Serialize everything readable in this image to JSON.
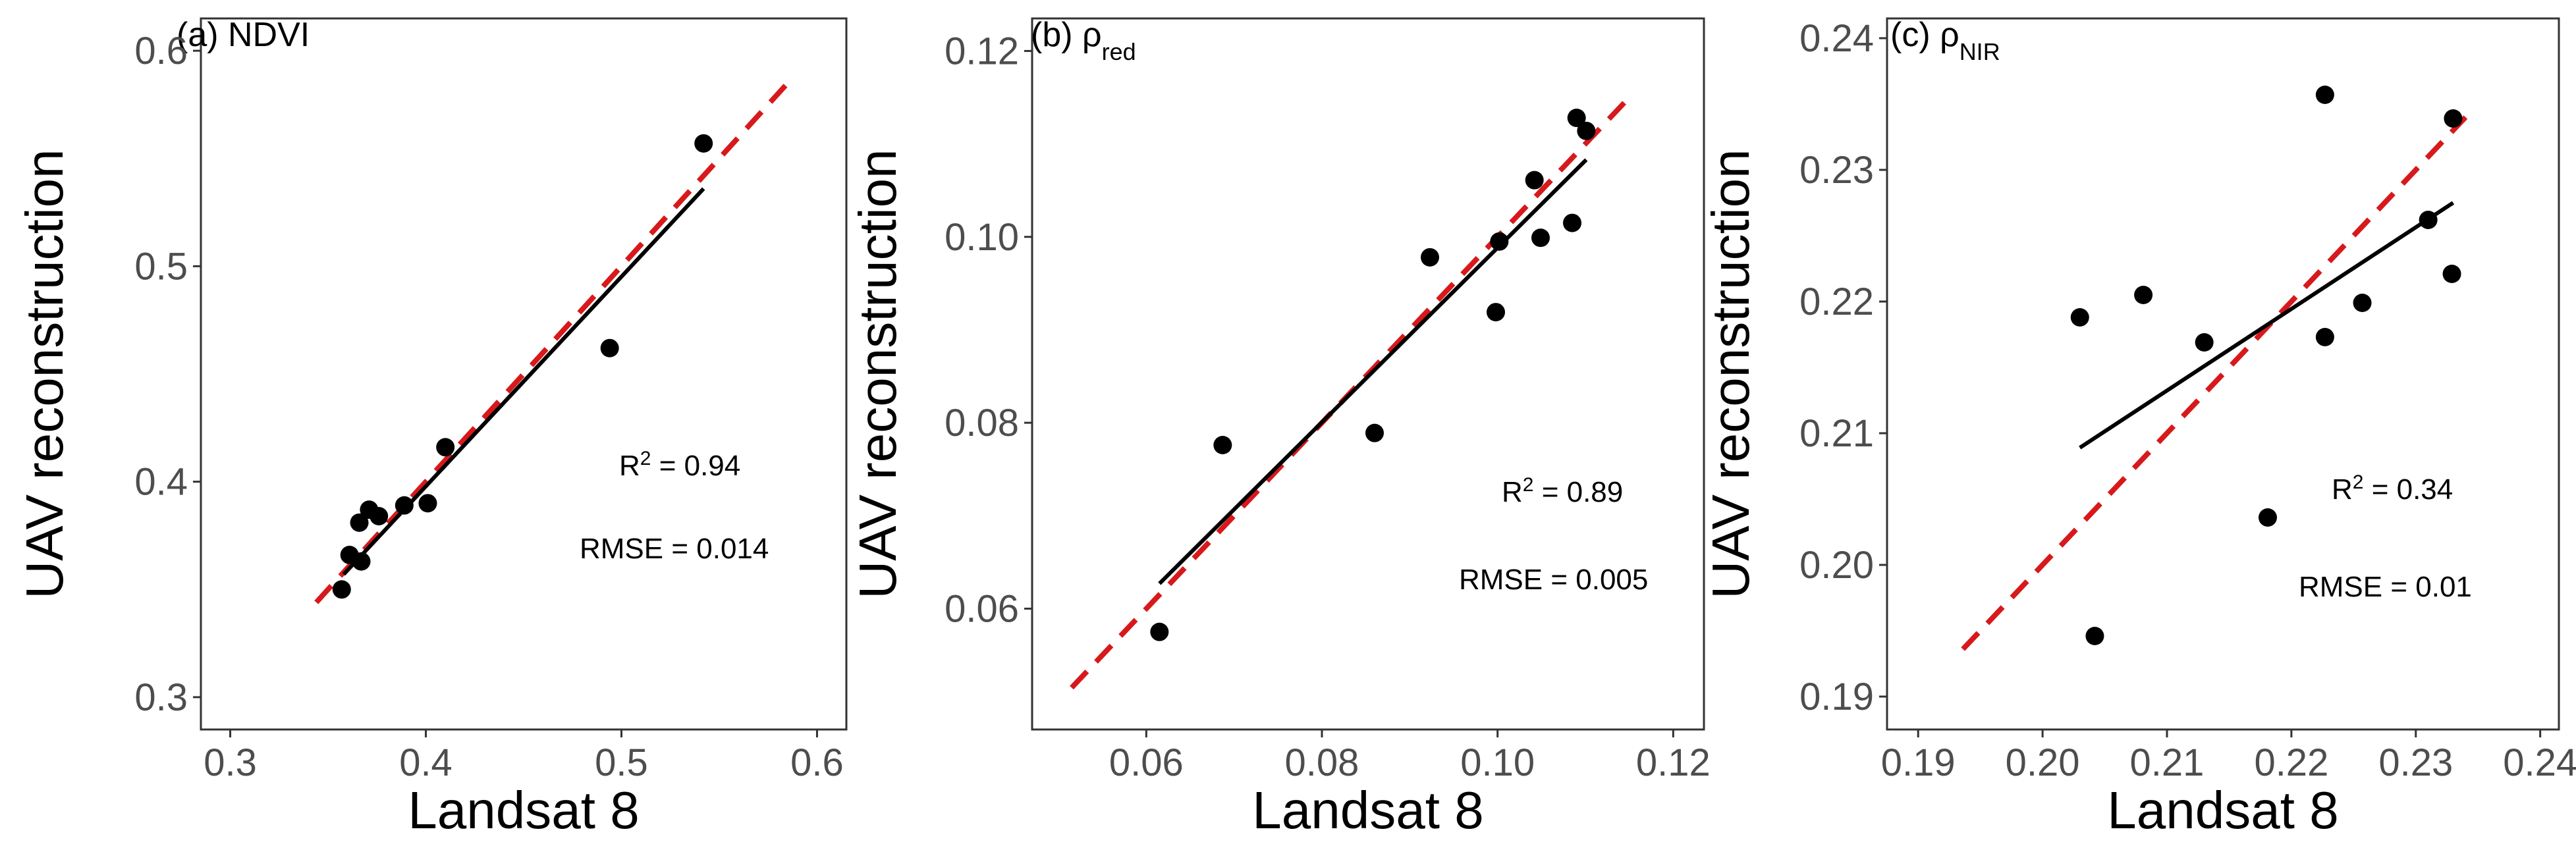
{
  "chart_data": [
    {
      "type": "scatter",
      "title": "(a) NDVI",
      "title_prefix": "(a) ",
      "title_main": "NDVI",
      "title_sub": "",
      "xlabel": "Landsat 8",
      "ylabel": "UAV reconstruction",
      "xlim": [
        0.285,
        0.615
      ],
      "ylim": [
        0.285,
        0.615
      ],
      "xticks": [
        0.3,
        0.4,
        0.5,
        0.6
      ],
      "xtick_labels": [
        "0.3",
        "0.4",
        "0.5",
        "0.6"
      ],
      "yticks": [
        0.3,
        0.4,
        0.5,
        0.6
      ],
      "ytick_labels": [
        "0.3",
        "0.4",
        "0.5",
        "0.6"
      ],
      "points": [
        {
          "x": 0.357,
          "y": 0.35
        },
        {
          "x": 0.361,
          "y": 0.366
        },
        {
          "x": 0.366,
          "y": 0.381
        },
        {
          "x": 0.367,
          "y": 0.363
        },
        {
          "x": 0.371,
          "y": 0.387
        },
        {
          "x": 0.376,
          "y": 0.384
        },
        {
          "x": 0.389,
          "y": 0.389
        },
        {
          "x": 0.401,
          "y": 0.39
        },
        {
          "x": 0.41,
          "y": 0.416
        },
        {
          "x": 0.494,
          "y": 0.462
        },
        {
          "x": 0.542,
          "y": 0.557
        }
      ],
      "identity_line": {
        "x": [
          0.344,
          0.588
        ],
        "y": [
          0.344,
          0.588
        ],
        "color": "#d7191c"
      },
      "fit_line": {
        "x": [
          0.358,
          0.542
        ],
        "y": [
          0.357,
          0.536
        ],
        "color": "#000000"
      },
      "r2_label": "R",
      "r2_sup": "2",
      "r2_value": " = 0.94",
      "rmse_label": "RMSE = 0.014"
    },
    {
      "type": "scatter",
      "title": "(b) ρred",
      "title_prefix": "(b) ",
      "title_main": "ρ",
      "title_sub": "red",
      "xlabel": "Landsat 8",
      "ylabel": "UAV reconstruction",
      "xlim": [
        0.047,
        0.1235
      ],
      "ylim": [
        0.047,
        0.1235
      ],
      "xticks": [
        0.06,
        0.08,
        0.1,
        0.12
      ],
      "xtick_labels": [
        "0.06",
        "0.08",
        "0.10",
        "0.12"
      ],
      "yticks": [
        0.06,
        0.08,
        0.1,
        0.12
      ],
      "ytick_labels": [
        "0.06",
        "0.08",
        "0.10",
        "0.12"
      ],
      "points": [
        {
          "x": 0.0615,
          "y": 0.0575
        },
        {
          "x": 0.0687,
          "y": 0.0776
        },
        {
          "x": 0.086,
          "y": 0.0789
        },
        {
          "x": 0.0923,
          "y": 0.0978
        },
        {
          "x": 0.0998,
          "y": 0.0919
        },
        {
          "x": 0.1002,
          "y": 0.0995
        },
        {
          "x": 0.1042,
          "y": 0.1061
        },
        {
          "x": 0.1049,
          "y": 0.0999
        },
        {
          "x": 0.1085,
          "y": 0.1015
        },
        {
          "x": 0.109,
          "y": 0.1128
        },
        {
          "x": 0.1101,
          "y": 0.1114
        }
      ],
      "identity_line": {
        "x": [
          0.0515,
          0.115
        ],
        "y": [
          0.0515,
          0.115
        ],
        "color": "#d7191c"
      },
      "fit_line": {
        "x": [
          0.0615,
          0.1101
        ],
        "y": [
          0.0627,
          0.1083
        ],
        "color": "#000000"
      },
      "r2_label": "R",
      "r2_sup": "2",
      "r2_value": " = 0.89",
      "rmse_label": "RMSE = 0.005"
    },
    {
      "type": "scatter",
      "title": "(c) ρNIR",
      "title_prefix": "(c) ",
      "title_main": "ρ",
      "title_sub": "NIR",
      "xlabel": "Landsat 8",
      "ylabel": "UAV reconstruction",
      "xlim": [
        0.1875,
        0.2415
      ],
      "ylim": [
        0.1875,
        0.2415
      ],
      "xticks": [
        0.19,
        0.2,
        0.21,
        0.22,
        0.23,
        0.24
      ],
      "xtick_labels": [
        "0.19",
        "0.20",
        "0.21",
        "0.22",
        "0.23",
        "0.24"
      ],
      "yticks": [
        0.19,
        0.2,
        0.21,
        0.22,
        0.23,
        0.24
      ],
      "ytick_labels": [
        "0.19",
        "0.20",
        "0.21",
        "0.22",
        "0.23",
        "0.24"
      ],
      "points": [
        {
          "x": 0.203,
          "y": 0.2188
        },
        {
          "x": 0.2042,
          "y": 0.1946
        },
        {
          "x": 0.2081,
          "y": 0.2205
        },
        {
          "x": 0.213,
          "y": 0.2169
        },
        {
          "x": 0.2181,
          "y": 0.2036
        },
        {
          "x": 0.2227,
          "y": 0.2357
        },
        {
          "x": 0.2227,
          "y": 0.2173
        },
        {
          "x": 0.2257,
          "y": 0.2199
        },
        {
          "x": 0.231,
          "y": 0.2262
        },
        {
          "x": 0.2329,
          "y": 0.2221
        },
        {
          "x": 0.233,
          "y": 0.2339
        }
      ],
      "identity_line": {
        "x": [
          0.1936,
          0.234
        ],
        "y": [
          0.1936,
          0.234
        ],
        "color": "#d7191c"
      },
      "fit_line": {
        "x": [
          0.203,
          0.233
        ],
        "y": [
          0.2089,
          0.2275
        ],
        "color": "#000000"
      },
      "r2_label": "R",
      "r2_sup": "2",
      "r2_value": " = 0.34",
      "rmse_label": "RMSE = 0.01"
    }
  ]
}
